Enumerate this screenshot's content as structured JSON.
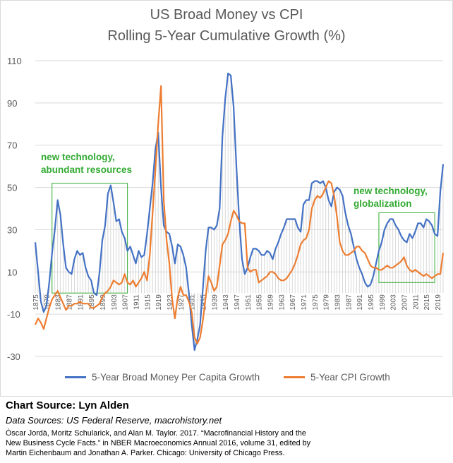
{
  "chart_data": {
    "type": "line",
    "title": "US Broad Money vs CPI",
    "subtitle": "Rolling 5-Year Cumulative Growth (%)",
    "xlabel": "",
    "ylabel": "",
    "ylim": [
      -30,
      110
    ],
    "yticks": [
      "110",
      "90",
      "70",
      "50",
      "30",
      "10",
      "-10",
      "-30"
    ],
    "xticks": [
      "1875",
      "1879",
      "1883",
      "1887",
      "1891",
      "1895",
      "1899",
      "1903",
      "1907",
      "1911",
      "1915",
      "1919",
      "1923",
      "1927",
      "1931",
      "1935",
      "1939",
      "1943",
      "1947",
      "1951",
      "1955",
      "1959",
      "1963",
      "1967",
      "1971",
      "1975",
      "1979",
      "1983",
      "1987",
      "1991",
      "1995",
      "1999",
      "2003",
      "2007",
      "2011",
      "2015",
      "2019"
    ],
    "grid": true,
    "legend_position": "bottom",
    "series": [
      {
        "name": "5-Year Broad Money Per Capita Growth",
        "color": "#4472c4",
        "points": [
          [
            1875,
            24
          ],
          [
            1876,
            10
          ],
          [
            1877,
            -4
          ],
          [
            1878,
            -9
          ],
          [
            1879,
            -6
          ],
          [
            1880,
            5
          ],
          [
            1881,
            19
          ],
          [
            1882,
            30
          ],
          [
            1883,
            44
          ],
          [
            1884,
            37
          ],
          [
            1885,
            23
          ],
          [
            1886,
            12
          ],
          [
            1887,
            10
          ],
          [
            1888,
            9
          ],
          [
            1889,
            16
          ],
          [
            1890,
            20
          ],
          [
            1891,
            18
          ],
          [
            1892,
            19
          ],
          [
            1893,
            12
          ],
          [
            1894,
            8
          ],
          [
            1895,
            6
          ],
          [
            1896,
            0
          ],
          [
            1897,
            -1
          ],
          [
            1898,
            10
          ],
          [
            1899,
            25
          ],
          [
            1900,
            32
          ],
          [
            1901,
            47
          ],
          [
            1902,
            51
          ],
          [
            1903,
            43
          ],
          [
            1904,
            34
          ],
          [
            1905,
            35
          ],
          [
            1906,
            29
          ],
          [
            1907,
            26
          ],
          [
            1908,
            20
          ],
          [
            1909,
            22
          ],
          [
            1910,
            18
          ],
          [
            1911,
            14
          ],
          [
            1912,
            20
          ],
          [
            1913,
            17
          ],
          [
            1914,
            18
          ],
          [
            1915,
            28
          ],
          [
            1916,
            40
          ],
          [
            1917,
            52
          ],
          [
            1918,
            68
          ],
          [
            1919,
            76
          ],
          [
            1920,
            50
          ],
          [
            1921,
            32
          ],
          [
            1922,
            29
          ],
          [
            1923,
            28
          ],
          [
            1924,
            22
          ],
          [
            1925,
            14
          ],
          [
            1926,
            23
          ],
          [
            1927,
            22
          ],
          [
            1928,
            18
          ],
          [
            1929,
            12
          ],
          [
            1930,
            0
          ],
          [
            1931,
            -15
          ],
          [
            1932,
            -27
          ],
          [
            1933,
            -22
          ],
          [
            1934,
            -15
          ],
          [
            1935,
            2
          ],
          [
            1936,
            20
          ],
          [
            1937,
            31
          ],
          [
            1938,
            31
          ],
          [
            1939,
            30
          ],
          [
            1940,
            32
          ],
          [
            1941,
            40
          ],
          [
            1942,
            74
          ],
          [
            1943,
            92
          ],
          [
            1944,
            104
          ],
          [
            1945,
            103
          ],
          [
            1946,
            88
          ],
          [
            1947,
            60
          ],
          [
            1948,
            35
          ],
          [
            1949,
            16
          ],
          [
            1950,
            9
          ],
          [
            1951,
            12
          ],
          [
            1952,
            17
          ],
          [
            1953,
            21
          ],
          [
            1954,
            21
          ],
          [
            1955,
            20
          ],
          [
            1956,
            18
          ],
          [
            1957,
            18
          ],
          [
            1958,
            20
          ],
          [
            1959,
            19
          ],
          [
            1960,
            16
          ],
          [
            1961,
            21
          ],
          [
            1962,
            24
          ],
          [
            1963,
            28
          ],
          [
            1964,
            31
          ],
          [
            1965,
            35
          ],
          [
            1966,
            35
          ],
          [
            1967,
            35
          ],
          [
            1968,
            35
          ],
          [
            1969,
            31
          ],
          [
            1970,
            29
          ],
          [
            1971,
            42
          ],
          [
            1972,
            44
          ],
          [
            1973,
            44
          ],
          [
            1974,
            52
          ],
          [
            1975,
            53
          ],
          [
            1976,
            53
          ],
          [
            1977,
            52
          ],
          [
            1978,
            53
          ],
          [
            1979,
            50
          ],
          [
            1980,
            44
          ],
          [
            1981,
            41
          ],
          [
            1982,
            48
          ],
          [
            1983,
            50
          ],
          [
            1984,
            49
          ],
          [
            1985,
            46
          ],
          [
            1986,
            38
          ],
          [
            1987,
            32
          ],
          [
            1988,
            28
          ],
          [
            1989,
            22
          ],
          [
            1990,
            16
          ],
          [
            1991,
            12
          ],
          [
            1992,
            9
          ],
          [
            1993,
            5
          ],
          [
            1994,
            3
          ],
          [
            1995,
            4
          ],
          [
            1996,
            8
          ],
          [
            1997,
            14
          ],
          [
            1998,
            20
          ],
          [
            1999,
            24
          ],
          [
            2000,
            30
          ],
          [
            2001,
            33
          ],
          [
            2002,
            35
          ],
          [
            2003,
            35
          ],
          [
            2004,
            32
          ],
          [
            2005,
            30
          ],
          [
            2006,
            27
          ],
          [
            2007,
            25
          ],
          [
            2008,
            24
          ],
          [
            2009,
            28
          ],
          [
            2010,
            26
          ],
          [
            2011,
            29
          ],
          [
            2012,
            33
          ],
          [
            2013,
            33
          ],
          [
            2014,
            31
          ],
          [
            2015,
            35
          ],
          [
            2016,
            34
          ],
          [
            2017,
            32
          ],
          [
            2018,
            28
          ],
          [
            2019,
            27
          ],
          [
            2020,
            48
          ],
          [
            2021,
            61
          ]
        ]
      },
      {
        "name": "5-Year CPI Growth",
        "color": "#ed7d31",
        "points": [
          [
            1875,
            -15
          ],
          [
            1876,
            -12
          ],
          [
            1877,
            -14
          ],
          [
            1878,
            -17
          ],
          [
            1879,
            -12
          ],
          [
            1880,
            -7
          ],
          [
            1881,
            -3
          ],
          [
            1882,
            -1
          ],
          [
            1883,
            1
          ],
          [
            1884,
            -2
          ],
          [
            1885,
            -5
          ],
          [
            1886,
            -8
          ],
          [
            1887,
            -6
          ],
          [
            1888,
            -6
          ],
          [
            1889,
            -5
          ],
          [
            1890,
            -5
          ],
          [
            1891,
            -4
          ],
          [
            1892,
            -5
          ],
          [
            1893,
            -5
          ],
          [
            1894,
            -5
          ],
          [
            1895,
            -7
          ],
          [
            1896,
            -7
          ],
          [
            1897,
            -6
          ],
          [
            1898,
            -5
          ],
          [
            1899,
            -2
          ],
          [
            1900,
            0
          ],
          [
            1901,
            1
          ],
          [
            1902,
            3
          ],
          [
            1903,
            6
          ],
          [
            1904,
            5
          ],
          [
            1905,
            4
          ],
          [
            1906,
            5
          ],
          [
            1907,
            9
          ],
          [
            1908,
            5
          ],
          [
            1909,
            4
          ],
          [
            1910,
            6
          ],
          [
            1911,
            3
          ],
          [
            1912,
            5
          ],
          [
            1913,
            7
          ],
          [
            1914,
            10
          ],
          [
            1915,
            6
          ],
          [
            1916,
            18
          ],
          [
            1917,
            38
          ],
          [
            1918,
            58
          ],
          [
            1919,
            80
          ],
          [
            1920,
            98
          ],
          [
            1921,
            44
          ],
          [
            1922,
            25
          ],
          [
            1923,
            14
          ],
          [
            1924,
            -3
          ],
          [
            1925,
            -12
          ],
          [
            1926,
            -2
          ],
          [
            1927,
            3
          ],
          [
            1928,
            -1
          ],
          [
            1929,
            -1
          ],
          [
            1930,
            -4
          ],
          [
            1931,
            -9
          ],
          [
            1932,
            -21
          ],
          [
            1933,
            -24
          ],
          [
            1934,
            -21
          ],
          [
            1935,
            -13
          ],
          [
            1936,
            -2
          ],
          [
            1937,
            8
          ],
          [
            1938,
            5
          ],
          [
            1939,
            1
          ],
          [
            1940,
            3
          ],
          [
            1941,
            13
          ],
          [
            1942,
            23
          ],
          [
            1943,
            25
          ],
          [
            1944,
            28
          ],
          [
            1945,
            34
          ],
          [
            1946,
            39
          ],
          [
            1947,
            37
          ],
          [
            1948,
            34
          ],
          [
            1949,
            33
          ],
          [
            1950,
            33
          ],
          [
            1951,
            12
          ],
          [
            1952,
            10
          ],
          [
            1953,
            11
          ],
          [
            1954,
            11
          ],
          [
            1955,
            5
          ],
          [
            1956,
            6
          ],
          [
            1957,
            7
          ],
          [
            1958,
            8
          ],
          [
            1959,
            10
          ],
          [
            1960,
            10
          ],
          [
            1961,
            9
          ],
          [
            1962,
            7
          ],
          [
            1963,
            6
          ],
          [
            1964,
            6
          ],
          [
            1965,
            7
          ],
          [
            1966,
            9
          ],
          [
            1967,
            11
          ],
          [
            1968,
            14
          ],
          [
            1969,
            18
          ],
          [
            1970,
            23
          ],
          [
            1971,
            25
          ],
          [
            1972,
            26
          ],
          [
            1973,
            30
          ],
          [
            1974,
            40
          ],
          [
            1975,
            44
          ],
          [
            1976,
            46
          ],
          [
            1977,
            45
          ],
          [
            1978,
            47
          ],
          [
            1979,
            50
          ],
          [
            1980,
            53
          ],
          [
            1981,
            52
          ],
          [
            1982,
            46
          ],
          [
            1983,
            36
          ],
          [
            1984,
            24
          ],
          [
            1985,
            20
          ],
          [
            1986,
            18
          ],
          [
            1987,
            18
          ],
          [
            1988,
            19
          ],
          [
            1989,
            20
          ],
          [
            1990,
            22
          ],
          [
            1991,
            22
          ],
          [
            1992,
            20
          ],
          [
            1993,
            19
          ],
          [
            1994,
            16
          ],
          [
            1995,
            13
          ],
          [
            1996,
            12
          ],
          [
            1997,
            12
          ],
          [
            1998,
            11
          ],
          [
            1999,
            11
          ],
          [
            2000,
            12
          ],
          [
            2001,
            13
          ],
          [
            2002,
            12
          ],
          [
            2003,
            12
          ],
          [
            2004,
            13
          ],
          [
            2005,
            14
          ],
          [
            2006,
            15
          ],
          [
            2007,
            17
          ],
          [
            2008,
            13
          ],
          [
            2009,
            11
          ],
          [
            2010,
            10
          ],
          [
            2011,
            11
          ],
          [
            2012,
            10
          ],
          [
            2013,
            9
          ],
          [
            2014,
            8
          ],
          [
            2015,
            9
          ],
          [
            2016,
            8
          ],
          [
            2017,
            7
          ],
          [
            2018,
            8
          ],
          [
            2019,
            9
          ],
          [
            2020,
            9
          ],
          [
            2021,
            19
          ]
        ]
      }
    ],
    "annotations": [
      {
        "lines": [
          "new technology,",
          "abundant resources"
        ],
        "box_x": [
          1881,
          1908
        ],
        "box_y": [
          0,
          52
        ]
      },
      {
        "lines": [
          "new technology,",
          "globalization"
        ],
        "box_x": [
          1998,
          2018
        ],
        "box_y": [
          5,
          38
        ]
      }
    ]
  },
  "source": {
    "chart_source": "Chart Source: Lyn Alden",
    "data_sources": "Data Sources: US Federal Reserve, macrohistory.net",
    "citation": [
      "Òscar Jordà, Moritz Schularick, and Alan M. Taylor. 2017. “Macrofinancial History and the",
      "New Business Cycle Facts.” in NBER Macroeconomics Annual 2016, volume 31, edited by",
      "Martin Eichenbaum and Jonathan A. Parker. Chicago: University of Chicago Press."
    ]
  },
  "colors": {
    "background": "#ffffff",
    "grid": "#d9d9d9",
    "axis_text": "#595959",
    "annotation": "#33aa33"
  }
}
